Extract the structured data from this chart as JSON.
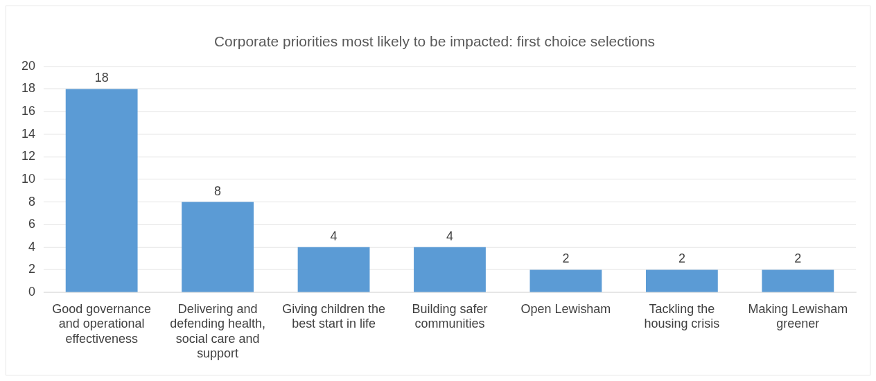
{
  "chart_data": {
    "type": "bar",
    "title": "Corporate priorities most likely to be impacted: first choice selections",
    "categories": [
      "Good governance and operational effectiveness",
      "Delivering and defending health, social care and support",
      "Giving children the best start in life",
      "Building safer communities",
      "Open Lewisham",
      "Tackling the housing crisis",
      "Making Lewisham greener"
    ],
    "values": [
      18,
      8,
      4,
      4,
      2,
      2,
      2
    ],
    "color": "#5b9bd5",
    "ylim": [
      0,
      20
    ],
    "yticks": [
      0,
      2,
      4,
      6,
      8,
      10,
      12,
      14,
      16,
      18,
      20
    ],
    "grid": "y",
    "data_labels": true,
    "legend": false
  }
}
